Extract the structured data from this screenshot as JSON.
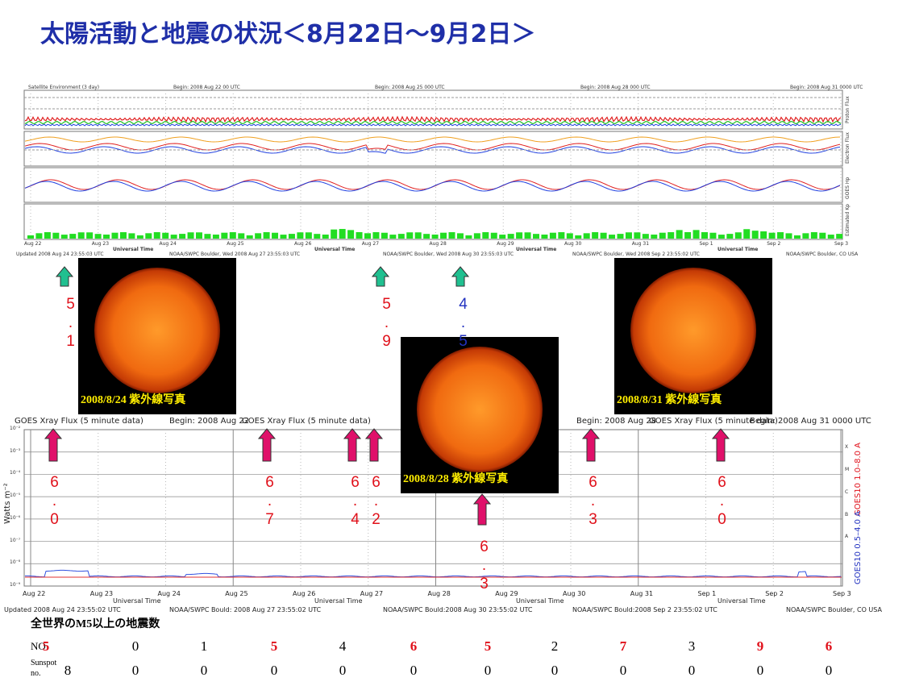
{
  "title": "太陽活動と地震の状況＜8月22日～9月2日＞",
  "satellite_chart": {
    "headers": [
      "Satellite Environment (3 day)",
      "Begin: 2008 Aug 22 00 UTC",
      "Begin: 2008 Aug 25 000 UTC",
      "Begin: 2008 Aug 28 000 UTC",
      "Begin: 2008 Aug 31 0000 UTC"
    ],
    "panel_labels": [
      "Proton Flux",
      "Electron Flux",
      "GOES Hp",
      "Estimated Kp"
    ],
    "dates": [
      "Aug 22",
      "Aug 23",
      "Aug 24",
      "Aug 25",
      "Aug 26",
      "Aug 27",
      "Aug 28",
      "Aug 29",
      "Aug 30",
      "Aug 31",
      "Sep 1",
      "Sep 2",
      "Sep 3"
    ],
    "axis_label": "Universal Time",
    "footers": [
      "Updated 2008 Aug 24 23:55:03 UTC",
      "NOAA/SWPC Boulder, Wed 2008 Aug 27 23:55:03 UTC",
      "NOAA/SWPC Boulder, Wed 2008 Aug 30 23:55:03 UTC",
      "NOAA/SWPC Boulder, Wed 2008 Sep 2 23:55:02 UTC",
      "NOAA/SWPC Boulder, CO USA"
    ]
  },
  "sun_photos": [
    "2008/8/24 紫外線写真",
    "2008/8/28 紫外線写真",
    "2008/8/31 紫外線写真"
  ],
  "solar_quakes": [
    "5.1",
    "5.9",
    "4.5"
  ],
  "xray_chart": {
    "title": "GOES Xray Flux (5 minute data)",
    "begins": [
      "Begin: 2008 Aug 22",
      "Begin: 2008 Aug 28",
      "Begin: 2008 Aug 31 0000 UTC"
    ],
    "y_label": "Watts m⁻²",
    "yticks": [
      "10⁻²",
      "10⁻³",
      "10⁻⁴",
      "10⁻⁵",
      "10⁻⁶",
      "10⁻⁷",
      "10⁻⁸",
      "10⁻⁹"
    ],
    "classes": [
      "X",
      "M",
      "C",
      "B",
      "A"
    ],
    "right_labels": [
      "GOES10 1.0–8.0 A",
      "GOES10 0.5–4.0 A"
    ],
    "footers": [
      "Updated 2008 Aug 24 23:55:02 UTC",
      "NOAA/SWPC Bould: 2008 Aug 27 23:55:02 UTC",
      "NOAA/SWPC Bould:2008 Aug 30 23:55:02 UTC",
      "NOAA/SWPC Bould:2008 Sep 2 23:55:02 UTC",
      "NOAA/SWPC Boulder, CO USA"
    ]
  },
  "xray_quakes": [
    "6.0",
    "6.7",
    "6.4",
    "6.2",
    "6.3",
    "6.0",
    "6.3"
  ],
  "table": {
    "title": "全世界のM5以上の地震数",
    "rows": [
      {
        "label": "NO",
        "values": [
          5,
          0,
          1,
          5,
          4,
          6,
          5,
          2,
          7,
          3,
          9,
          6
        ]
      },
      {
        "label": "Sunspot no.",
        "values": [
          8,
          0,
          0,
          0,
          0,
          0,
          0,
          0,
          0,
          0,
          0,
          0
        ]
      }
    ]
  }
}
